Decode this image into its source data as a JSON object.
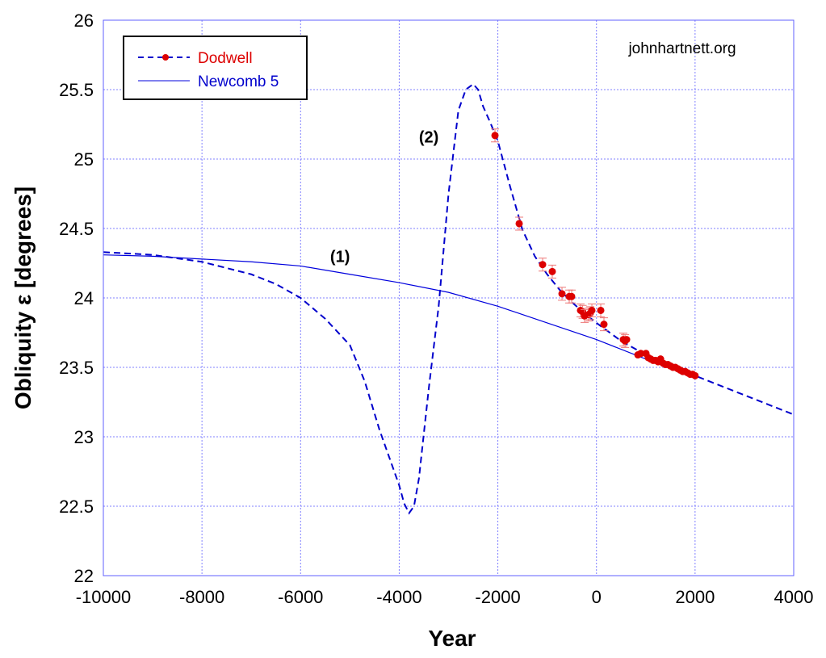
{
  "chart_data": {
    "type": "line",
    "title": "",
    "xlabel": "Year",
    "ylabel": "Obliquity ε [degrees]",
    "xlim": [
      -10000,
      4000
    ],
    "ylim": [
      22,
      26
    ],
    "xticks": [
      -10000,
      -8000,
      -6000,
      -4000,
      -2000,
      0,
      2000,
      4000
    ],
    "yticks": [
      22,
      22.5,
      23,
      23.5,
      24,
      24.5,
      25,
      25.5,
      26
    ],
    "grid": true,
    "legend": {
      "placement": "top-left",
      "entries": [
        "Dodwell",
        "Newcomb 5"
      ]
    },
    "watermark": "johnhartnett.org",
    "annotations": [
      {
        "text": "(1)",
        "x": -5200,
        "y": 24.3
      },
      {
        "text": "(2)",
        "x": -3400,
        "y": 25.16
      }
    ],
    "colors": {
      "dodwell_line": "#0000cc",
      "dodwell_points": "#dd0000",
      "newcomb": "#0000dd",
      "grid": "#8080ff",
      "legend_dodwell_text": "#dd0000",
      "legend_newcomb_text": "#0000cc"
    },
    "series": [
      {
        "name": "Dodwell",
        "style": "dashed",
        "x": [
          -10000,
          -9000,
          -8000,
          -7000,
          -6500,
          -6000,
          -5500,
          -5000,
          -4700,
          -4400,
          -4200,
          -4000,
          -3900,
          -3800,
          -3700,
          -3600,
          -3400,
          -3200,
          -3000,
          -2800,
          -2650,
          -2500,
          -2400,
          -2300,
          -2150,
          -2000,
          -1750,
          -1500,
          -1250,
          -1000,
          -750,
          -500,
          -250,
          0,
          500,
          1000,
          1500,
          2000,
          3000,
          4000
        ],
        "y": [
          24.33,
          24.31,
          24.26,
          24.17,
          24.1,
          24.0,
          23.85,
          23.66,
          23.4,
          23.05,
          22.85,
          22.65,
          22.52,
          22.45,
          22.5,
          22.7,
          23.35,
          23.94,
          24.75,
          25.35,
          25.5,
          25.54,
          25.5,
          25.38,
          25.26,
          25.13,
          24.8,
          24.49,
          24.3,
          24.17,
          24.06,
          23.97,
          23.89,
          23.82,
          23.69,
          23.59,
          23.51,
          23.44,
          23.3,
          23.16
        ]
      },
      {
        "name": "Newcomb 5",
        "style": "solid",
        "x": [
          -10000,
          -9000,
          -8000,
          -7000,
          -6000,
          -5000,
          -4000,
          -3000,
          -2000,
          -1000,
          0,
          1000,
          2000
        ],
        "y": [
          24.31,
          24.3,
          24.28,
          24.26,
          24.23,
          24.17,
          24.11,
          24.04,
          23.94,
          23.82,
          23.7,
          23.56,
          23.44
        ]
      },
      {
        "name": "Dodwell data",
        "style": "points",
        "x": [
          -2058,
          -1567,
          -1092,
          -896,
          -699,
          -552,
          -503,
          -323,
          -280,
          -241,
          -160,
          -126,
          -93,
          87,
          152,
          545,
          580,
          611,
          840,
          900,
          1004,
          1050,
          1100,
          1150,
          1200,
          1250,
          1300,
          1350,
          1400,
          1450,
          1500,
          1550,
          1600,
          1650,
          1700,
          1750,
          1800,
          1850,
          1900,
          1950,
          2000
        ],
        "y": [
          25.17,
          24.535,
          24.24,
          24.19,
          24.03,
          24.01,
          24.01,
          23.91,
          23.9,
          23.87,
          23.88,
          23.89,
          23.91,
          23.91,
          23.81,
          23.7,
          23.69,
          23.7,
          23.59,
          23.6,
          23.6,
          23.57,
          23.56,
          23.55,
          23.55,
          23.54,
          23.56,
          23.53,
          23.52,
          23.52,
          23.51,
          23.5,
          23.5,
          23.49,
          23.48,
          23.47,
          23.47,
          23.46,
          23.45,
          23.45,
          23.44
        ]
      }
    ]
  }
}
